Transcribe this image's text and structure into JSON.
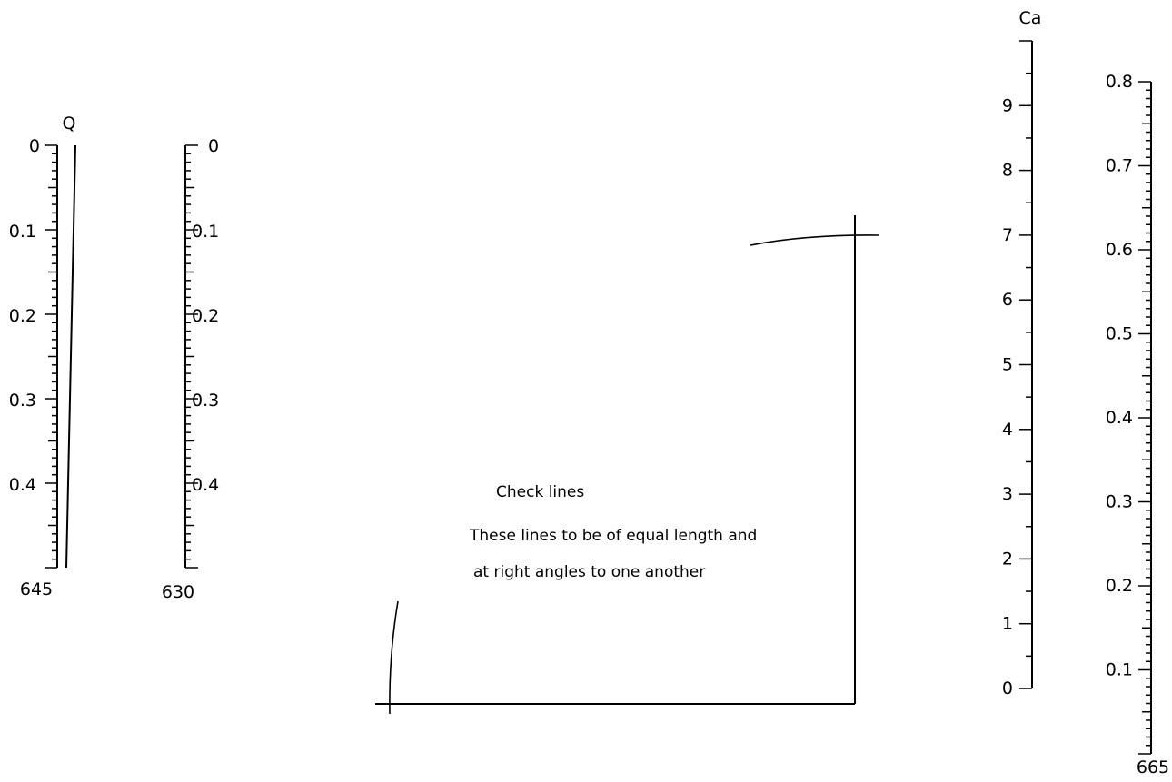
{
  "scales": {
    "s645": {
      "label_top": "0",
      "q_label": "Q",
      "ticks": [
        "0.1",
        "0.2",
        "0.3",
        "0.4"
      ],
      "bottom_label": "645",
      "range": [
        0,
        0.5
      ],
      "minor_per_unit": 10
    },
    "s630": {
      "label_top": "0",
      "ticks": [
        "0.1",
        "0.2",
        "0.3",
        "0.4"
      ],
      "bottom_label": "630",
      "range": [
        0,
        0.5
      ],
      "minor_per_unit": 10
    },
    "ca": {
      "title": "Ca",
      "ticks": [
        "0",
        "1",
        "2",
        "3",
        "4",
        "5",
        "6",
        "7",
        "8",
        "9"
      ],
      "range": [
        0,
        10
      ],
      "minor_per_unit": 2
    },
    "s665": {
      "ticks": [
        "0.1",
        "0.2",
        "0.3",
        "0.4",
        "0.5",
        "0.6",
        "0.7",
        "0.8"
      ],
      "bottom_label": "665",
      "range": [
        0,
        0.8
      ],
      "minor_per_unit": 10
    }
  },
  "check": {
    "title": "Check lines",
    "line1": "These lines to be of equal length and",
    "line2": "at right angles to one another"
  }
}
